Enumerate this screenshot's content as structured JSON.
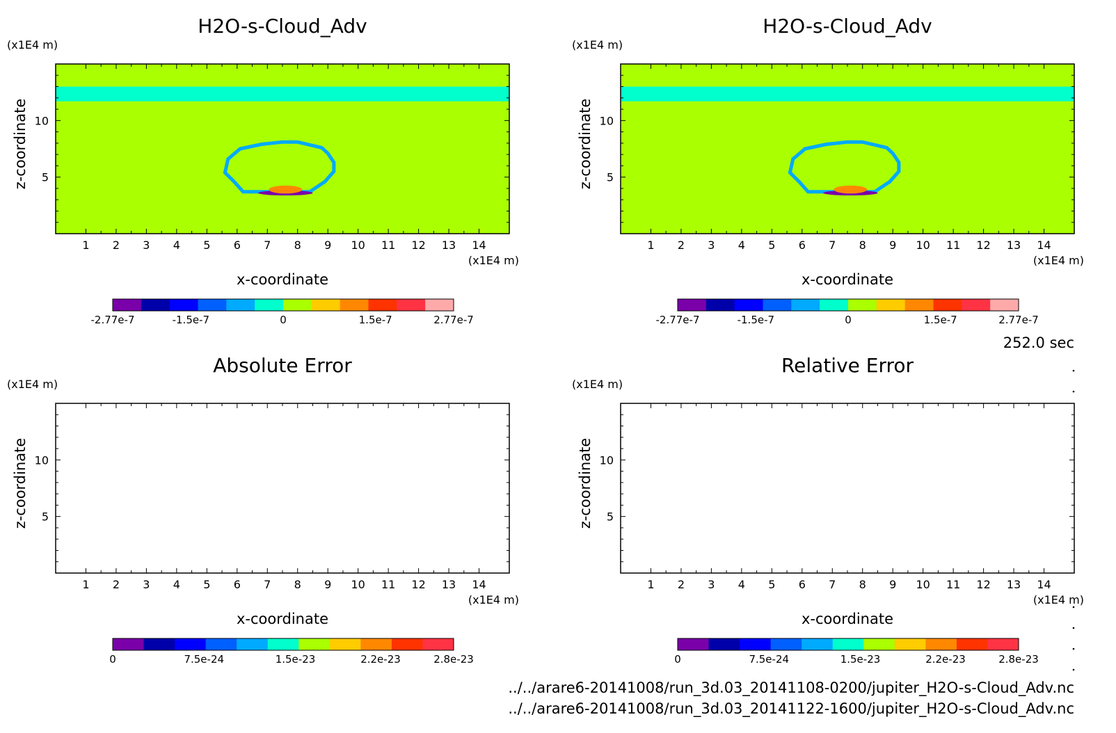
{
  "panels": [
    {
      "title": "H2O-s-Cloud_Adv",
      "type": "field",
      "colorbar": {
        "colors": [
          "#7a00aa",
          "#0000aa",
          "#0000ff",
          "#0060ff",
          "#00aaff",
          "#00ffcc",
          "#aaff00",
          "#ffcc00",
          "#ff8800",
          "#ff3300",
          "#ff3344",
          "#ffaaaa"
        ],
        "tick_labels": [
          "-2.77e-7",
          "-1.5e-7",
          "0",
          "1.5e-7",
          "2.77e-7"
        ],
        "tick_values": [
          -2.77e-07,
          -1.5e-07,
          0,
          1.5e-07,
          2.77e-07
        ],
        "range": [
          -2.77e-07,
          2.77e-07
        ]
      }
    },
    {
      "title": "H2O-s-Cloud_Adv",
      "type": "field",
      "colorbar": {
        "colors": [
          "#7a00aa",
          "#0000aa",
          "#0000ff",
          "#0060ff",
          "#00aaff",
          "#00ffcc",
          "#aaff00",
          "#ffcc00",
          "#ff8800",
          "#ff3300",
          "#ff3344",
          "#ffaaaa"
        ],
        "tick_labels": [
          "-2.77e-7",
          "-1.5e-7",
          "0",
          "1.5e-7",
          "2.77e-7"
        ],
        "tick_values": [
          -2.77e-07,
          -1.5e-07,
          0,
          1.5e-07,
          2.77e-07
        ],
        "range": [
          -2.77e-07,
          2.77e-07
        ]
      }
    },
    {
      "title": "Absolute Error",
      "type": "empty",
      "colorbar": {
        "colors": [
          "#7a00aa",
          "#0000aa",
          "#0000ff",
          "#0060ff",
          "#00aaff",
          "#00ffcc",
          "#aaff00",
          "#ffcc00",
          "#ff8800",
          "#ff3300",
          "#ff3344"
        ],
        "tick_labels": [
          "0",
          "7.5e-24",
          "1.5e-23",
          "2.2e-23",
          "2.8e-23"
        ],
        "tick_values": [
          0,
          7.5e-24,
          1.5e-23,
          2.2e-23,
          2.8e-23
        ],
        "range": [
          0,
          2.8e-23
        ]
      }
    },
    {
      "title": "Relative Error",
      "type": "empty",
      "colorbar": {
        "colors": [
          "#7a00aa",
          "#0000aa",
          "#0000ff",
          "#0060ff",
          "#00aaff",
          "#00ffcc",
          "#aaff00",
          "#ffcc00",
          "#ff8800",
          "#ff3300",
          "#ff3344"
        ],
        "tick_labels": [
          "0",
          "7.5e-24",
          "1.5e-23",
          "2.2e-23",
          "2.8e-23"
        ],
        "tick_values": [
          0,
          7.5e-24,
          1.5e-23,
          2.2e-23,
          2.8e-23
        ],
        "range": [
          0,
          2.8e-23
        ]
      }
    }
  ],
  "axes": {
    "xlabel": "x-coordinate",
    "ylabel": "z-coordinate",
    "x_unit": "(x1E4 m)",
    "y_unit": "(x1E4 m)",
    "xlim": [
      0,
      15
    ],
    "ylim": [
      0,
      15
    ],
    "x_ticks": [
      1,
      2,
      3,
      4,
      5,
      6,
      7,
      8,
      9,
      10,
      11,
      12,
      13,
      14
    ],
    "y_ticks": [
      5,
      10
    ]
  },
  "time_label": "252.0 sec",
  "footer": [
    "../../arare6-20141008/run_3d.03_20141108-0200/jupiter_H2O-s-Cloud_Adv.nc",
    "../../arare6-20141008/run_3d.03_20141122-1600/jupiter_H2O-s-Cloud_Adv.nc"
  ],
  "chart_data": [
    {
      "type": "heatmap",
      "title": "H2O-s-Cloud_Adv",
      "xlabel": "x-coordinate",
      "ylabel": "z-coordinate",
      "xlim": [
        0,
        15
      ],
      "ylim": [
        0,
        15
      ],
      "background_value": 0,
      "features": [
        {
          "kind": "band",
          "z_range": [
            11.7,
            13.0
          ],
          "value": -3e-08
        },
        {
          "kind": "ring",
          "center_x": 7.6,
          "center_z": 5.7,
          "value": -6e-08
        },
        {
          "kind": "blob",
          "center_x": 7.6,
          "center_z": 3.6,
          "value": -2.5e-07
        },
        {
          "kind": "blob",
          "center_x": 7.6,
          "center_z": 3.9,
          "value": 1e-07
        }
      ]
    },
    {
      "type": "heatmap",
      "title": "H2O-s-Cloud_Adv",
      "xlabel": "x-coordinate",
      "ylabel": "z-coordinate",
      "xlim": [
        0,
        15
      ],
      "ylim": [
        0,
        15
      ],
      "background_value": 0,
      "features": [
        {
          "kind": "band",
          "z_range": [
            11.7,
            13.0
          ],
          "value": -3e-08
        },
        {
          "kind": "ring",
          "center_x": 7.6,
          "center_z": 5.7,
          "value": -6e-08
        },
        {
          "kind": "blob",
          "center_x": 7.6,
          "center_z": 3.6,
          "value": -2.5e-07
        },
        {
          "kind": "blob",
          "center_x": 7.6,
          "center_z": 3.9,
          "value": 1e-07
        }
      ]
    },
    {
      "type": "heatmap",
      "title": "Absolute Error",
      "xlabel": "x-coordinate",
      "ylabel": "z-coordinate",
      "xlim": [
        0,
        15
      ],
      "ylim": [
        0,
        15
      ],
      "values": []
    },
    {
      "type": "heatmap",
      "title": "Relative Error",
      "xlabel": "x-coordinate",
      "ylabel": "z-coordinate",
      "xlim": [
        0,
        15
      ],
      "ylim": [
        0,
        15
      ],
      "values": []
    }
  ]
}
